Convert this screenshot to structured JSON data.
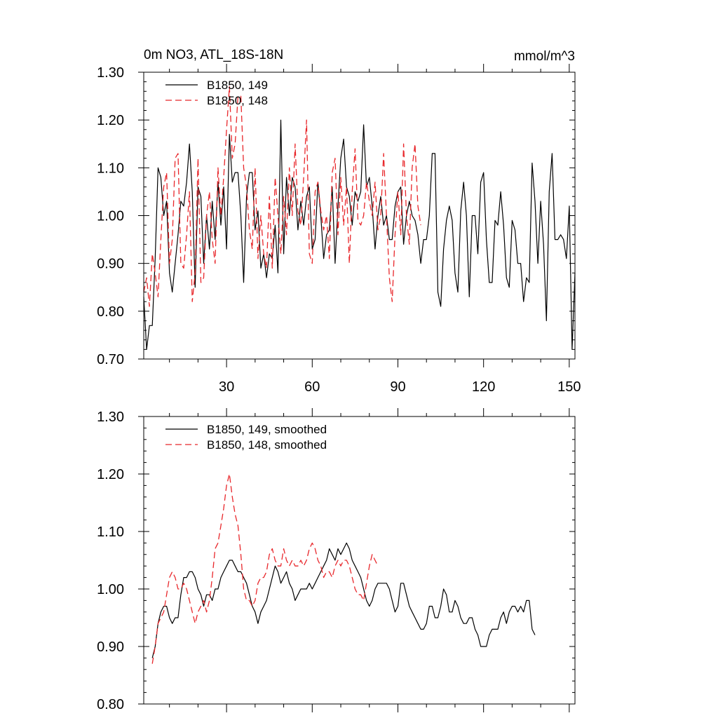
{
  "chart_data": [
    {
      "type": "line",
      "title_left": "0m NO3, ATL_18S-18N",
      "title_right": "mmol/m^3",
      "xlim": [
        1,
        152
      ],
      "ylim": [
        0.7,
        1.3
      ],
      "yticks": [
        "0.70",
        "0.80",
        "0.90",
        "1.00",
        "1.10",
        "1.20",
        "1.30"
      ],
      "xticks": [
        30,
        60,
        90,
        120,
        150
      ],
      "xtick_labels": [
        "30",
        "60",
        "90",
        "120",
        "150"
      ],
      "legend_position": "top-left",
      "series": [
        {
          "name": "B1850, 149",
          "color": "#000000",
          "dash": "solid",
          "x_start": 1,
          "values": [
            0.83,
            0.72,
            0.77,
            0.77,
            0.91,
            1.1,
            1.08,
            1.0,
            1.03,
            0.88,
            0.84,
            0.9,
            0.96,
            1.03,
            1.02,
            1.07,
            1.15,
            1.05,
            0.85,
            1.06,
            1.04,
            0.9,
            1.0,
            0.93,
            1.03,
            0.95,
            1.07,
            0.98,
            1.06,
            0.93,
            1.17,
            1.07,
            1.09,
            1.09,
            1.0,
            0.86,
            1.04,
            1.09,
            1.09,
            0.97,
            1.01,
            0.89,
            0.92,
            0.87,
            0.92,
            0.91,
            0.98,
            0.88,
            1.2,
            0.92,
            1.08,
            1.0,
            1.08,
            1.06,
            0.97,
            1.03,
            0.98,
            1.04,
            1.06,
            0.93,
            0.95,
            1.07,
            1.0,
            0.91,
            0.96,
            0.97,
            1.06,
            0.9,
            1.02,
            1.12,
            1.16,
            1.06,
            1.04,
            0.98,
            1.05,
            1.03,
            1.05,
            1.19,
            1.06,
            1.08,
            1.02,
            0.93,
            1.0,
            1.04,
            0.98,
            1.0,
            0.95,
            0.95,
            1.02,
            1.05,
            1.06,
            0.94,
            1.0,
            1.03,
            1.0,
            0.99,
            0.96,
            0.9,
            0.95,
            0.95,
            1.0,
            1.13,
            1.13,
            0.84,
            0.81,
            0.93,
            0.99,
            1.02,
            0.99,
            0.88,
            0.84,
            1.01,
            1.07,
            1.0,
            0.83,
            1.0,
            1.0,
            0.92,
            1.07,
            1.09,
            0.95,
            0.86,
            0.86,
            0.99,
            0.98,
            1.05,
            0.98,
            0.87,
            0.85,
            0.99,
            0.97,
            0.9,
            0.9,
            0.82,
            0.87,
            0.86,
            1.11,
            1.03,
            0.9,
            1.03,
            0.94,
            0.78,
            1.05,
            1.13,
            0.95,
            0.95,
            0.96,
            0.95,
            0.91,
            1.02,
            0.72,
            0.88
          ]
        },
        {
          "name": "B1850, 148",
          "color": "#e8272b",
          "dash": "dashed",
          "x_start": 1,
          "values": [
            0.84,
            0.87,
            0.81,
            0.92,
            0.88,
            0.83,
            0.95,
            1.06,
            1.09,
            0.9,
            0.95,
            1.12,
            1.13,
            0.9,
            0.89,
            0.96,
            1.05,
            0.82,
            0.88,
            1.12,
            0.86,
            0.87,
            1.0,
            1.05,
            0.95,
            0.9,
            1.1,
            1.0,
            1.08,
            1.18,
            1.27,
            1.12,
            1.15,
            1.25,
            1.25,
            1.1,
            1.06,
            0.97,
            0.93,
            1.1,
            0.91,
            1.0,
            0.92,
            0.89,
            1.04,
            0.89,
            1.08,
            1.0,
            0.92,
            1.04,
            0.96,
            1.1,
            1.0,
            1.15,
            1.01,
            0.98,
            1.08,
            1.2,
            0.92,
            0.9,
            1.05,
            1.07,
            1.01,
            0.97,
            1.0,
            0.91,
            1.09,
            1.12,
            0.96,
            1.08,
            0.98,
            1.06,
            0.9,
            1.05,
            1.14,
            0.99,
            0.98,
            1.0,
            1.07,
            1.03,
            1.0,
            1.07,
            0.97,
            1.0,
            1.13,
            1.0,
            0.87,
            0.82,
            0.96,
            1.05,
            0.96,
            1.15,
            1.0,
            0.94,
            1.1,
            1.15,
            1.02,
            0.98
          ],
          "x_offset_from_index": 1
        }
      ]
    },
    {
      "type": "line",
      "xlim": [
        1,
        152
      ],
      "ylim": [
        0.8,
        1.3
      ],
      "yticks": [
        "0.80",
        "0.90",
        "1.00",
        "1.10",
        "1.20",
        "1.30"
      ],
      "xticks": [
        30,
        60,
        90,
        120,
        150
      ],
      "legend_position": "top-left",
      "series": [
        {
          "name": "B1850, 149, smoothed",
          "color": "#000000",
          "dash": "solid",
          "x_start": 4,
          "values": [
            0.88,
            0.9,
            0.94,
            0.96,
            0.97,
            0.97,
            0.95,
            0.94,
            0.95,
            0.95,
            0.99,
            1.02,
            1.02,
            1.03,
            1.03,
            1.02,
            1.0,
            0.99,
            0.97,
            0.99,
            0.99,
            0.98,
            1.0,
            1.0,
            1.02,
            1.03,
            1.04,
            1.05,
            1.05,
            1.04,
            1.03,
            1.03,
            1.02,
            1.01,
            0.99,
            0.97,
            0.96,
            0.94,
            0.96,
            0.97,
            0.98,
            1.0,
            1.02,
            1.04,
            1.03,
            1.01,
            1.02,
            1.03,
            1.01,
            1.0,
            0.98,
            0.99,
            1.0,
            1.0,
            1.0,
            1.01,
            1.0,
            1.01,
            1.02,
            1.03,
            1.04,
            1.05,
            1.07,
            1.06,
            1.05,
            1.07,
            1.06,
            1.07,
            1.08,
            1.07,
            1.05,
            1.04,
            1.03,
            1.02,
            1.0,
            0.98,
            0.97,
            0.98,
            1.0,
            1.01,
            1.01,
            1.01,
            1.01,
            1.0,
            0.98,
            0.96,
            0.97,
            1.01,
            1.01,
            0.99,
            0.97,
            0.96,
            0.95,
            0.94,
            0.93,
            0.93,
            0.94,
            0.97,
            0.97,
            0.95,
            0.95,
            0.97,
            1.0,
            0.99,
            0.96,
            0.96,
            0.98,
            0.97,
            0.95,
            0.94,
            0.94,
            0.95,
            0.95,
            0.93,
            0.92,
            0.9,
            0.9,
            0.9,
            0.92,
            0.93,
            0.93,
            0.93,
            0.95,
            0.96,
            0.94,
            0.96,
            0.97,
            0.97,
            0.96,
            0.97,
            0.96,
            0.98,
            0.98,
            0.93,
            0.92
          ]
        },
        {
          "name": "B1850, 148, smoothed",
          "color": "#e8272b",
          "dash": "dashed",
          "x_start": 4,
          "values": [
            0.87,
            0.9,
            0.94,
            0.95,
            0.96,
            0.99,
            1.02,
            1.03,
            1.02,
            1.0,
            1.0,
            1.01,
            1.0,
            0.98,
            0.96,
            0.94,
            0.96,
            0.97,
            0.98,
            0.96,
            0.98,
            1.02,
            1.07,
            1.08,
            1.11,
            1.14,
            1.18,
            1.2,
            1.16,
            1.13,
            1.11,
            1.06,
            1.0,
            0.98,
            0.98,
            0.97,
            0.98,
            1.01,
            1.02,
            1.02,
            1.03,
            1.06,
            1.07,
            1.05,
            1.04,
            1.04,
            1.07,
            1.05,
            1.04,
            1.05,
            1.04,
            1.04,
            1.05,
            1.04,
            1.05,
            1.07,
            1.08,
            1.07,
            1.05,
            1.04,
            1.02,
            1.03,
            1.03,
            1.02,
            1.04,
            1.05,
            1.04,
            1.05,
            1.05,
            1.04,
            1.02,
            1.0,
            0.99,
            0.99,
            0.98,
            1.01,
            1.04,
            1.06,
            1.05,
            1.04
          ]
        }
      ]
    }
  ]
}
